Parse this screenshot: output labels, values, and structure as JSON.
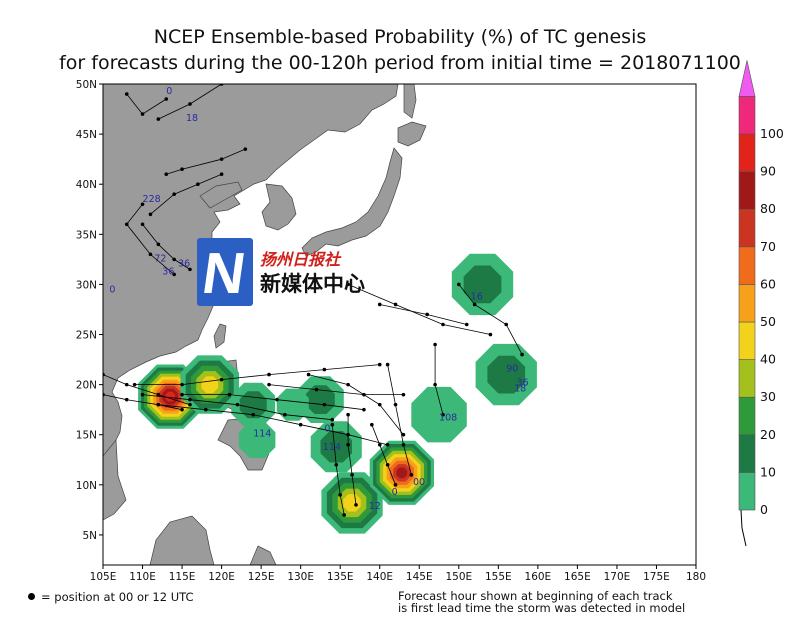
{
  "title": {
    "line1": "NCEP Ensemble-based Probability (%) of TC genesis",
    "line2": "for forecasts during the 00-120h period from initial time = 2018071100"
  },
  "map": {
    "lat_labels": [
      "50N",
      "45N",
      "40N",
      "35N",
      "30N",
      "25N",
      "20N",
      "15N",
      "10N",
      "5N"
    ],
    "lon_labels": [
      "105E",
      "110E",
      "115E",
      "120E",
      "125E",
      "130E",
      "135E",
      "140E",
      "145E",
      "150E",
      "155E",
      "160E",
      "165E",
      "170E",
      "175E",
      "180"
    ],
    "lat_range": [
      2,
      50
    ],
    "lon_range": [
      105,
      180
    ],
    "land_color": "#9b9b9b",
    "ocean_color": "#ffffff",
    "track_labels": [
      {
        "text": "0",
        "lon": 113.0,
        "lat": 49.0
      },
      {
        "text": "18",
        "lon": 115.5,
        "lat": 46.3
      },
      {
        "text": "228",
        "lon": 110.0,
        "lat": 38.2
      },
      {
        "text": "72",
        "lon": 111.5,
        "lat": 32.3
      },
      {
        "text": "36",
        "lon": 114.5,
        "lat": 31.8
      },
      {
        "text": "36",
        "lon": 112.5,
        "lat": 31.0
      },
      {
        "text": "0",
        "lon": 105.8,
        "lat": 29.2
      },
      {
        "text": "114",
        "lon": 124.0,
        "lat": 14.8
      },
      {
        "text": "114",
        "lon": 132.8,
        "lat": 13.5
      },
      {
        "text": "108",
        "lon": 147.5,
        "lat": 16.4
      },
      {
        "text": "90",
        "lon": 156.0,
        "lat": 21.3
      },
      {
        "text": "36",
        "lon": 157.3,
        "lat": 19.9
      },
      {
        "text": "18",
        "lon": 157.0,
        "lat": 19.3
      },
      {
        "text": "16",
        "lon": 151.5,
        "lat": 28.5
      },
      {
        "text": "12",
        "lon": 138.6,
        "lat": 7.6
      },
      {
        "text": "0",
        "lon": 141.5,
        "lat": 9.0
      },
      {
        "text": "00",
        "lon": 144.2,
        "lat": 10.0
      },
      {
        "text": "0",
        "lon": 133.0,
        "lat": 15.3
      }
    ]
  },
  "colorbar": {
    "levels": [
      {
        "label": "0",
        "color": "#3cb878"
      },
      {
        "label": "10",
        "color": "#1d7a45"
      },
      {
        "label": "20",
        "color": "#2f9a3a"
      },
      {
        "label": "30",
        "color": "#a4c01d"
      },
      {
        "label": "40",
        "color": "#f2d21a"
      },
      {
        "label": "50",
        "color": "#f7a11b"
      },
      {
        "label": "60",
        "color": "#f06b1c"
      },
      {
        "label": "70",
        "color": "#cc3422"
      },
      {
        "label": "80",
        "color": "#a01818"
      },
      {
        "label": "90",
        "color": "#e2231a"
      },
      {
        "label": "100",
        "color": "#f0287a"
      }
    ],
    "top_color": "#ef5bee"
  },
  "footer": {
    "legend": "= position at 00 or 12 UTC",
    "note_line1": "Forecast hour shown at beginning of each track",
    "note_line2": "is first lead time the storm was detected in model"
  },
  "watermark": {
    "top": "扬州日报社",
    "bottom": "新媒体中心",
    "icon": "N-logo-icon"
  }
}
